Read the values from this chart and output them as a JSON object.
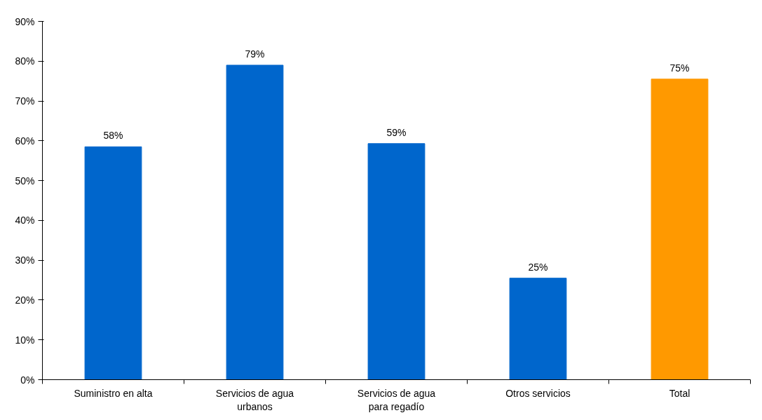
{
  "chart_data": {
    "type": "bar",
    "categories": [
      "Suministro en alta",
      "Servicios de agua urbanos",
      "Servicios de agua para regadío",
      "Otros servicios",
      "Total"
    ],
    "values": [
      58.5,
      79,
      59.3,
      25.5,
      75.5
    ],
    "value_labels": [
      "58%",
      "79%",
      "59%",
      "25%",
      "75%"
    ],
    "colors": [
      "#0066cc",
      "#0066cc",
      "#0066cc",
      "#0066cc",
      "#ff9900"
    ],
    "ylim": [
      0,
      90
    ],
    "yticks": [
      {
        "value": 0,
        "label": "0%"
      },
      {
        "value": 10,
        "label": "10%"
      },
      {
        "value": 20,
        "label": "20%"
      },
      {
        "value": 30,
        "label": "30%"
      },
      {
        "value": 40,
        "label": "40%"
      },
      {
        "value": 50,
        "label": "50%"
      },
      {
        "value": 60,
        "label": "60%"
      },
      {
        "value": 70,
        "label": "70%"
      },
      {
        "value": 80,
        "label": "80%"
      },
      {
        "value": 90,
        "label": "90%"
      }
    ],
    "grid": false
  }
}
